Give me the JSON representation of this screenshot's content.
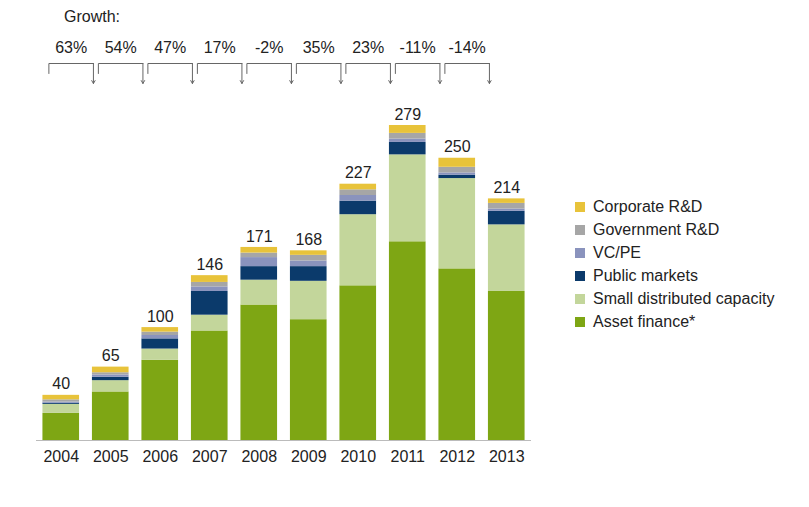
{
  "chart_data": {
    "type": "bar",
    "stacked": true,
    "tick_labels": "x",
    "legend": "right",
    "categories": [
      "2004",
      "2005",
      "2006",
      "2007",
      "2008",
      "2009",
      "2010",
      "2011",
      "2012",
      "2013"
    ],
    "series": [
      {
        "name": "Asset finance*",
        "color": "#7ea614",
        "values": [
          24,
          43,
          71,
          97,
          120,
          107,
          137,
          176,
          152,
          132
        ]
      },
      {
        "name": "Small distributed capacity",
        "color": "#c3d69b",
        "values": [
          8,
          10,
          10,
          14,
          22,
          34,
          63,
          77,
          80,
          59
        ]
      },
      {
        "name": "Public markets",
        "color": "#0b3a6b",
        "values": [
          1,
          3,
          9,
          21,
          12,
          13,
          12,
          11,
          3,
          12
        ]
      },
      {
        "name": "VC/PE",
        "color": "#8a93bd",
        "values": [
          1,
          2,
          3,
          4,
          8,
          5,
          5,
          3,
          2,
          2
        ]
      },
      {
        "name": "Government R&D",
        "color": "#a6a6a6",
        "values": [
          2,
          2,
          3,
          4,
          4,
          5,
          5,
          5,
          5,
          5
        ]
      },
      {
        "name": "Corporate R&D",
        "color": "#e8c33a",
        "values": [
          4,
          5,
          4,
          6,
          5,
          4,
          5,
          7,
          8,
          4
        ]
      }
    ],
    "totals": [
      40,
      65,
      100,
      146,
      171,
      168,
      227,
      279,
      250,
      214
    ],
    "growth": {
      "title": "Growth:",
      "values": [
        63,
        54,
        47,
        17,
        -2,
        35,
        23,
        -11,
        -14
      ],
      "value_labels": [
        "63%",
        "54%",
        "47%",
        "17%",
        "-2%",
        "35%",
        "23%",
        "-11%",
        "-14%"
      ]
    }
  }
}
